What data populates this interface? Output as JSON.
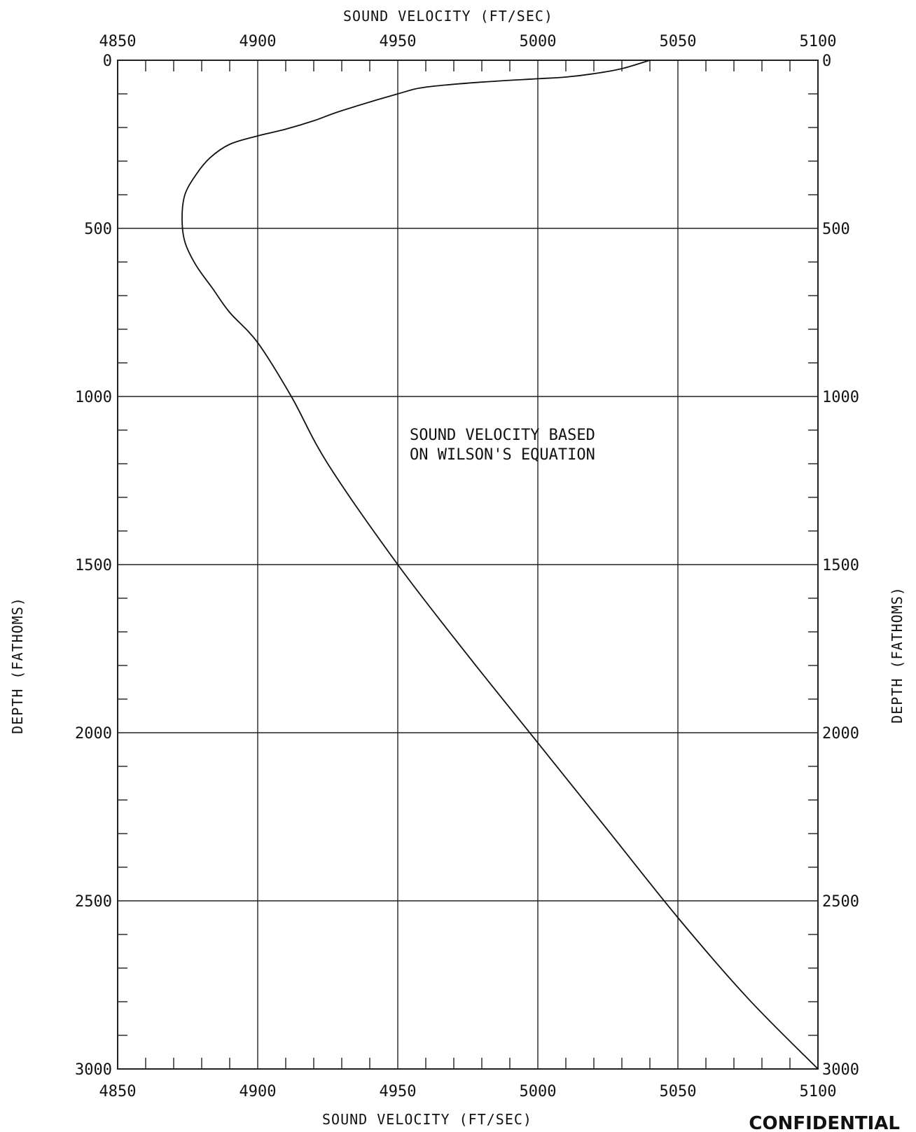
{
  "chart_data": {
    "type": "line",
    "x_axis_title_top": "SOUND VELOCITY (FT/SEC)",
    "x_axis_title_bottom": "SOUND VELOCITY (FT/SEC)",
    "y_axis_title_left": "DEPTH (FATHOMS)",
    "y_axis_title_right": "DEPTH (FATHOMS)",
    "xlim": [
      4850,
      5100
    ],
    "ylim": [
      0,
      3000
    ],
    "y_inverted": true,
    "grid": true,
    "x_tick_labels": [
      "4850",
      "4900",
      "4950",
      "5000",
      "5050",
      "5100"
    ],
    "y_tick_labels": [
      "0",
      "500",
      "1000",
      "1500",
      "2000",
      "2500",
      "3000"
    ],
    "annotation": [
      "SOUND VELOCITY BASED",
      "ON WILSON'S EQUATION"
    ],
    "series": [
      {
        "x": [
          5040,
          5030,
          5020,
          5010,
          5000,
          4980,
          4960,
          4950,
          4930,
          4920,
          4910,
          4900,
          4890,
          4883,
          4878,
          4874,
          4873,
          4874,
          4878,
          4884,
          4890,
          4900,
          4912,
          4925,
          4950,
          4975,
          5000,
          5025,
          5050,
          5075,
          5100
        ],
        "y": [
          0,
          25,
          40,
          50,
          55,
          65,
          80,
          100,
          150,
          180,
          205,
          225,
          250,
          290,
          340,
          400,
          470,
          540,
          610,
          680,
          750,
          840,
          1000,
          1200,
          1500,
          1770,
          2030,
          2290,
          2550,
          2790,
          3000
        ]
      }
    ]
  },
  "footer_stamp": "CONFIDENTIAL"
}
